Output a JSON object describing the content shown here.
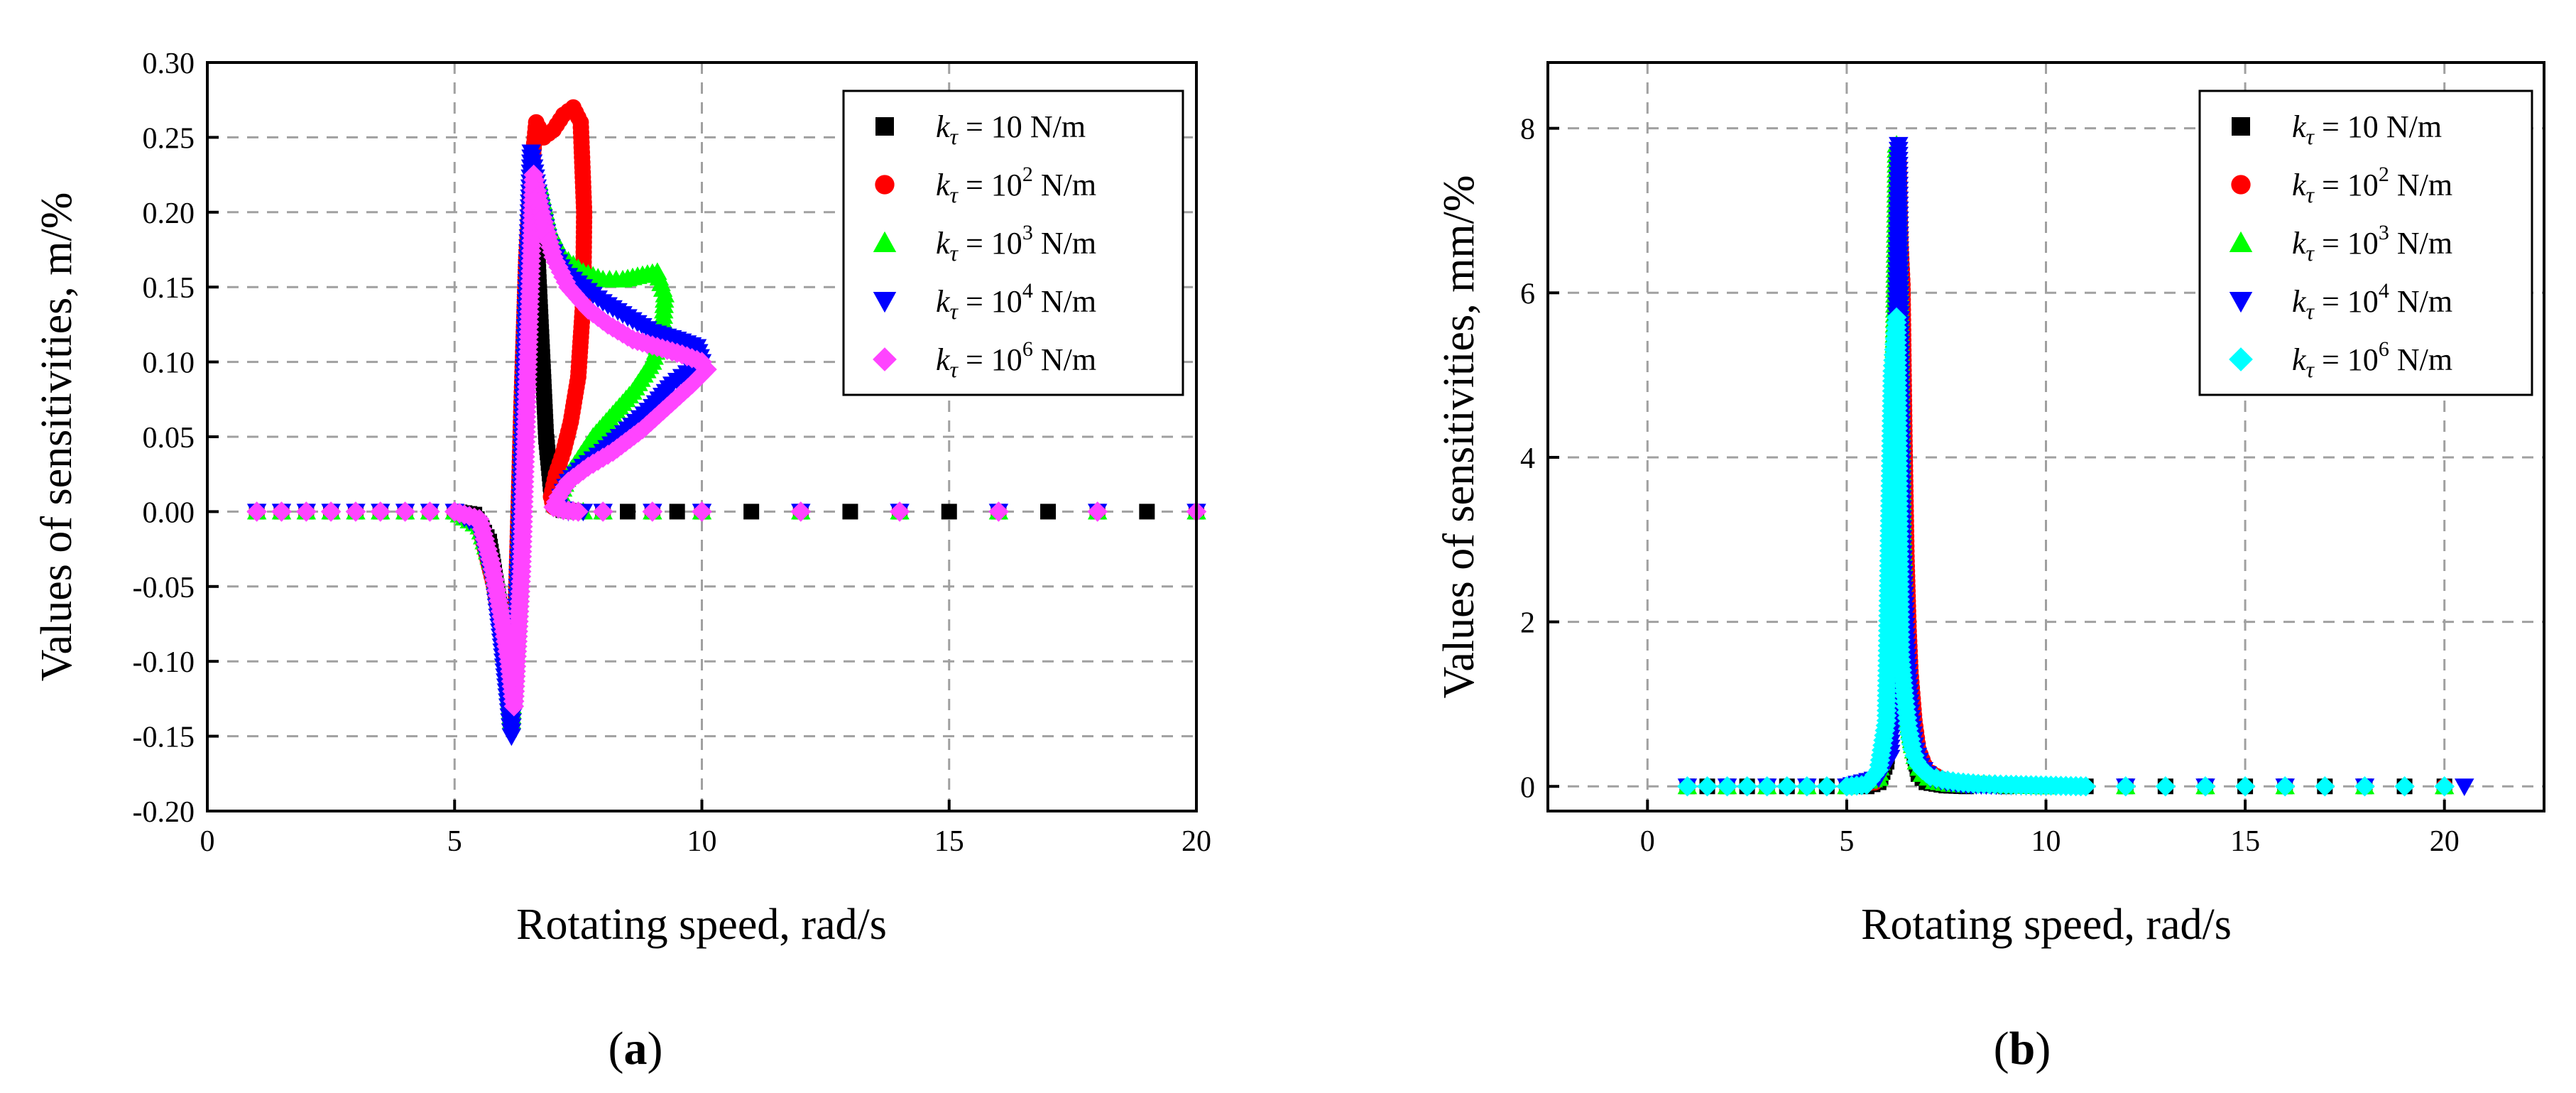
{
  "chart_data": [
    {
      "panel": "a",
      "type": "scatter",
      "xlabel": "Rotating speed, rad/s",
      "ylabel": "Values of sensitivities, m/%",
      "xlim": [
        0,
        20
      ],
      "ylim": [
        -0.2,
        0.3
      ],
      "xticks": [
        "0",
        "5",
        "10",
        "15",
        "20"
      ],
      "yticks": [
        "-0.20",
        "-0.15",
        "-0.10",
        "-0.05",
        "0.00",
        "0.05",
        "0.10",
        "0.15",
        "0.20",
        "0.25",
        "0.30"
      ],
      "grid": true,
      "legend_position": "top-right",
      "series": [
        {
          "name": "10 N/m",
          "base": "10",
          "exp": "",
          "color": "#000000",
          "marker": "square",
          "x": [
            1.0,
            1.5,
            2.0,
            2.5,
            3.0,
            3.5,
            4.0,
            4.5,
            5.0,
            5.4,
            5.7,
            5.9,
            6.05,
            6.15,
            6.25,
            6.35,
            6.45,
            6.55,
            6.65,
            6.75,
            6.85,
            6.95,
            7.05,
            7.2,
            7.5,
            8.0,
            8.5,
            9.0,
            9.5,
            10.0,
            11,
            12,
            13,
            14,
            15,
            16,
            17,
            18,
            19,
            20
          ],
          "y": [
            0,
            0,
            0,
            0,
            0,
            0,
            0,
            0,
            0,
            -0.002,
            -0.02,
            -0.06,
            -0.09,
            -0.093,
            -0.06,
            0.02,
            0.15,
            0.21,
            0.19,
            0.12,
            0.05,
            0.015,
            0.004,
            0.001,
            0,
            0,
            0,
            0,
            0,
            0,
            0,
            0,
            0,
            0,
            0,
            0,
            0,
            0,
            0,
            0
          ]
        },
        {
          "name": "10² N/m",
          "base": "10",
          "exp": "2",
          "color": "#ff0000",
          "marker": "circle",
          "x": [
            1.0,
            1.5,
            2.0,
            2.5,
            3.0,
            3.5,
            4.0,
            4.5,
            5.0,
            5.5,
            5.8,
            5.95,
            6.05,
            6.15,
            6.25,
            6.35,
            6.45,
            6.55,
            6.65,
            6.8,
            7.0,
            7.2,
            7.4,
            7.55,
            7.62,
            7.6,
            7.5,
            7.35,
            7.2,
            7.05,
            6.95,
            7.0,
            7.2,
            7.5,
            8,
            9,
            10,
            12,
            14,
            16,
            18,
            20
          ],
          "y": [
            0,
            0,
            0,
            0,
            0,
            0,
            0,
            0,
            0,
            -0.01,
            -0.05,
            -0.08,
            -0.11,
            -0.13,
            -0.05,
            0.07,
            0.17,
            0.225,
            0.26,
            0.25,
            0.255,
            0.265,
            0.27,
            0.26,
            0.2,
            0.14,
            0.09,
            0.06,
            0.04,
            0.025,
            0.01,
            0.003,
            0.001,
            0,
            0,
            0,
            0,
            0,
            0,
            0,
            0,
            0
          ]
        },
        {
          "name": "10³ N/m",
          "base": "10",
          "exp": "3",
          "color": "#00ff00",
          "marker": "triangle-up",
          "x": [
            1.0,
            1.5,
            2.0,
            2.5,
            3.0,
            3.5,
            4.0,
            4.5,
            5.0,
            5.5,
            5.8,
            5.95,
            6.05,
            6.15,
            6.3,
            6.45,
            6.55,
            6.7,
            6.9,
            7.2,
            7.6,
            8.0,
            8.4,
            8.8,
            9.1,
            9.25,
            9.2,
            9.0,
            8.6,
            8.2,
            7.8,
            7.5,
            7.3,
            7.15,
            7.1,
            7.3,
            7.6,
            8,
            9,
            10,
            12,
            14,
            16,
            18,
            20
          ],
          "y": [
            0,
            0,
            0,
            0,
            0,
            0,
            0,
            0,
            0,
            -0.01,
            -0.04,
            -0.07,
            -0.1,
            -0.14,
            -0.05,
            0.12,
            0.21,
            0.22,
            0.19,
            0.17,
            0.16,
            0.155,
            0.155,
            0.158,
            0.16,
            0.145,
            0.12,
            0.1,
            0.08,
            0.065,
            0.05,
            0.035,
            0.025,
            0.012,
            0.004,
            0.001,
            0,
            0,
            0,
            0,
            0,
            0,
            0,
            0,
            0
          ]
        },
        {
          "name": "10⁴ N/m",
          "base": "10",
          "exp": "4",
          "color": "#0000ff",
          "marker": "triangle-down",
          "x": [
            1.0,
            1.5,
            2.0,
            2.5,
            3.0,
            3.5,
            4.0,
            4.5,
            5.0,
            5.5,
            5.8,
            5.95,
            6.05,
            6.15,
            6.3,
            6.45,
            6.55,
            6.7,
            6.9,
            7.2,
            7.6,
            8.0,
            8.5,
            9.0,
            9.5,
            9.9,
            10.0,
            9.8,
            9.4,
            9.0,
            8.5,
            8.0,
            7.6,
            7.3,
            7.15,
            7.1,
            7.3,
            7.6,
            8,
            9,
            10,
            12,
            14,
            16,
            18,
            20
          ],
          "y": [
            0,
            0,
            0,
            0,
            0,
            0,
            0,
            0,
            0,
            -0.01,
            -0.05,
            -0.09,
            -0.12,
            -0.15,
            -0.03,
            0.14,
            0.24,
            0.21,
            0.18,
            0.16,
            0.15,
            0.14,
            0.13,
            0.12,
            0.115,
            0.11,
            0.1,
            0.095,
            0.085,
            0.07,
            0.055,
            0.04,
            0.03,
            0.02,
            0.01,
            0.003,
            0,
            0,
            0,
            0,
            0,
            0,
            0,
            0,
            0,
            0
          ]
        },
        {
          "name": "10⁶ N/m",
          "base": "10",
          "exp": "6",
          "color": "#ff44ff",
          "marker": "diamond",
          "x": [
            1.0,
            1.5,
            2.0,
            2.5,
            3.0,
            3.5,
            4.0,
            4.5,
            5.0,
            5.5,
            5.75,
            5.95,
            6.1,
            6.2,
            6.35,
            6.5,
            6.6,
            6.75,
            7.0,
            7.3,
            7.7,
            8.1,
            8.6,
            9.1,
            9.6,
            10.0,
            10.1,
            9.8,
            9.3,
            8.8,
            8.2,
            7.7,
            7.3,
            7.1,
            7.0,
            7.2,
            7.5,
            8,
            9,
            10,
            12,
            14,
            16,
            18,
            20
          ],
          "y": [
            0,
            0,
            0,
            0,
            0,
            0,
            0,
            0,
            0,
            -0.005,
            -0.035,
            -0.07,
            -0.1,
            -0.13,
            -0.04,
            0.12,
            0.225,
            0.2,
            0.17,
            0.15,
            0.135,
            0.125,
            0.115,
            0.11,
            0.105,
            0.1,
            0.095,
            0.085,
            0.07,
            0.055,
            0.04,
            0.03,
            0.02,
            0.01,
            0.003,
            0.001,
            0,
            0,
            0,
            0,
            0,
            0,
            0,
            0,
            0
          ]
        }
      ]
    },
    {
      "panel": "b",
      "type": "scatter",
      "xlabel": "Rotating speed, rad/s",
      "ylabel": "Values of sensitivities, mm/%",
      "xlim": [
        -2.5,
        22.5
      ],
      "ylim": [
        -0.3,
        8.8
      ],
      "xticks": [
        "0",
        "5",
        "10",
        "15",
        "20"
      ],
      "yticks": [
        "0",
        "2",
        "4",
        "6",
        "8"
      ],
      "grid": true,
      "legend_position": "top-right",
      "series": [
        {
          "name": "10 N/m",
          "base": "10",
          "exp": "",
          "color": "#000000",
          "marker": "square",
          "x": [
            1.0,
            1.5,
            2.0,
            2.5,
            3.0,
            3.5,
            4.0,
            4.5,
            5.0,
            5.5,
            5.8,
            6.0,
            6.1,
            6.2,
            6.3,
            6.35,
            6.4,
            6.5,
            6.6,
            6.7,
            6.8,
            7.0,
            7.5,
            8,
            9,
            10,
            11,
            12,
            13,
            14,
            15,
            16,
            17,
            18,
            19,
            20
          ],
          "y": [
            0,
            0,
            0,
            0,
            0,
            0,
            0,
            0,
            0,
            0,
            0.05,
            0.3,
            0.9,
            1.8,
            2.8,
            3.0,
            2.7,
            1.8,
            0.9,
            0.4,
            0.15,
            0.05,
            0.01,
            0,
            0,
            0,
            0,
            0,
            0,
            0,
            0,
            0,
            0,
            0,
            0,
            0
          ]
        },
        {
          "name": "10² N/m",
          "base": "10",
          "exp": "2",
          "color": "#ff0000",
          "marker": "circle",
          "x": [
            1.0,
            2.0,
            3.0,
            4.0,
            5.0,
            5.7,
            6.0,
            6.1,
            6.2,
            6.3,
            6.35,
            6.4,
            6.45,
            6.5,
            6.55,
            6.6,
            6.7,
            6.8,
            7.0,
            7.5,
            8,
            10,
            12,
            14,
            16,
            18,
            20
          ],
          "y": [
            0,
            0,
            0,
            0,
            0,
            0.05,
            0.45,
            1.4,
            3.6,
            7.6,
            6.6,
            6.1,
            4.2,
            2.8,
            1.95,
            1.4,
            0.8,
            0.45,
            0.2,
            0.05,
            0.02,
            0,
            0,
            0,
            0,
            0,
            0
          ]
        },
        {
          "name": "10³ N/m",
          "base": "10",
          "exp": "3",
          "color": "#00ff00",
          "marker": "triangle-up",
          "x": [
            1.0,
            2.0,
            3.0,
            4.0,
            5.0,
            5.8,
            6.1,
            6.25,
            6.35,
            6.45,
            6.55,
            6.65,
            6.75,
            6.9,
            7.2,
            7.6,
            8,
            10,
            12,
            14,
            16,
            18,
            20
          ],
          "y": [
            0,
            0,
            0,
            0,
            0,
            0.1,
            1.05,
            7.8,
            5.2,
            1.5,
            0.8,
            0.5,
            0.3,
            0.15,
            0.06,
            0.03,
            0.02,
            0,
            0,
            0,
            0,
            0,
            0
          ]
        },
        {
          "name": "10⁴ N/m",
          "base": "10",
          "exp": "4",
          "color": "#0000ff",
          "marker": "triangle-down",
          "x": [
            1.0,
            2.0,
            3.0,
            4.0,
            5.0,
            5.8,
            6.1,
            6.2,
            6.3,
            6.4,
            6.5,
            6.6,
            6.7,
            6.85,
            7.1,
            7.5,
            8,
            10,
            12,
            14,
            16,
            18,
            20.5
          ],
          "y": [
            0,
            0,
            0,
            0,
            0,
            0.1,
            0.35,
            3.05,
            7.8,
            2.9,
            1.7,
            0.9,
            0.5,
            0.25,
            0.1,
            0.05,
            0.02,
            0,
            0,
            0,
            0,
            0,
            0
          ]
        },
        {
          "name": "10⁶ N/m",
          "base": "10",
          "exp": "6",
          "color": "#00ffff",
          "marker": "diamond",
          "x": [
            1.0,
            1.5,
            2.0,
            2.5,
            3.0,
            3.5,
            4.0,
            4.5,
            5.0,
            5.5,
            5.8,
            6.0,
            6.15,
            6.25,
            6.35,
            6.45,
            6.55,
            6.65,
            6.75,
            6.9,
            7.1,
            7.4,
            7.8,
            8.3,
            9,
            10,
            11,
            12,
            13,
            14,
            15,
            16,
            17,
            18,
            19,
            20
          ],
          "y": [
            0,
            0,
            0,
            0,
            0,
            0,
            0,
            0,
            0,
            0.02,
            0.2,
            0.8,
            5.05,
            5.7,
            1.6,
            1.1,
            0.7,
            0.45,
            0.3,
            0.2,
            0.12,
            0.08,
            0.05,
            0.03,
            0.02,
            0.01,
            0,
            0,
            0,
            0,
            0,
            0,
            0,
            0,
            0,
            0
          ]
        }
      ]
    }
  ],
  "legend_prefix": "k",
  "legend_subscript": "τ",
  "panel_labels": [
    "a",
    "b"
  ]
}
